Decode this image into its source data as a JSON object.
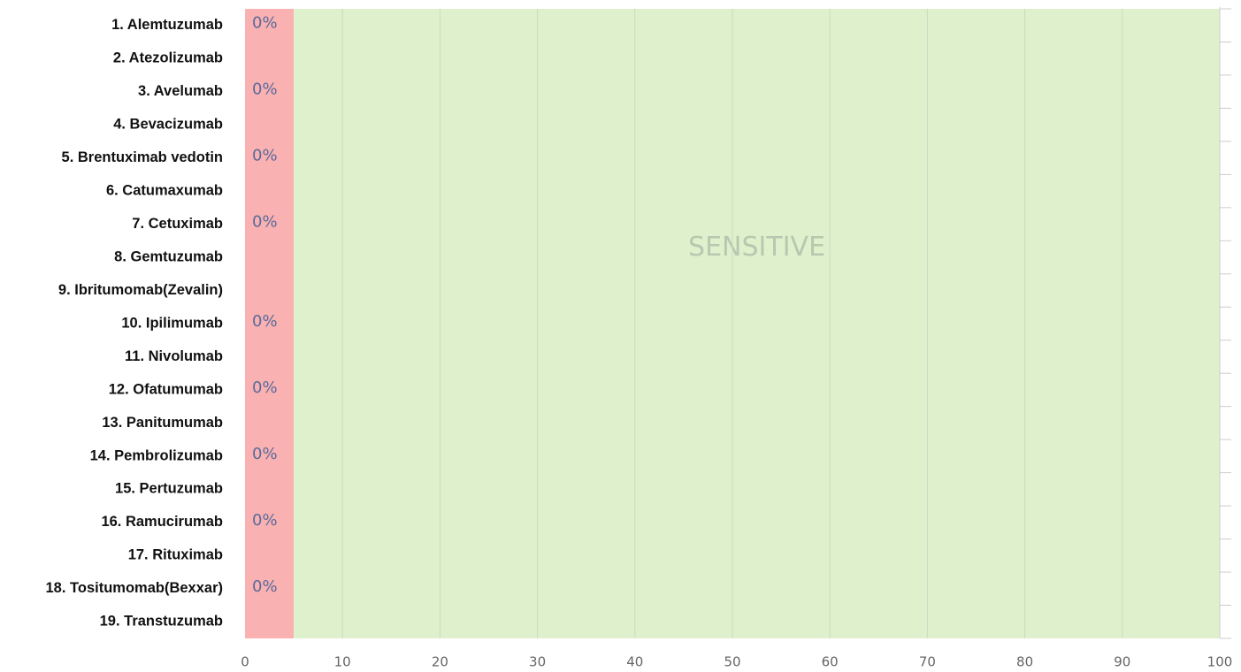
{
  "chart_data": {
    "type": "bar",
    "orientation": "horizontal",
    "categories": [
      "1. Alemtuzumab",
      "2. Atezolizumab",
      "3. Avelumab",
      "4. Bevacizumab",
      "5. Brentuximab vedotin",
      "6. Catumaxumab",
      "7. Cetuximab",
      "8. Gemtuzumab",
      "9. Ibritumomab(Zevalin)",
      "10. Ipilimumab",
      "11. Nivolumab",
      "12. Ofatumumab",
      "13. Panitumumab",
      "14. Pembrolizumab",
      "15. Pertuzumab",
      "16. Ramucirumab",
      "17. Rituximab",
      "18. Tositumomab(Bexxar)",
      "19. Transtuzumab"
    ],
    "values": [
      0,
      0,
      0,
      0,
      0,
      0,
      0,
      0,
      0,
      0,
      0,
      0,
      0,
      0,
      0,
      0,
      0,
      0,
      0
    ],
    "value_labels": [
      "0%",
      null,
      "0%",
      null,
      "0%",
      null,
      "0%",
      null,
      null,
      "0%",
      null,
      "0%",
      null,
      "0%",
      null,
      "0%",
      null,
      "0%",
      null
    ],
    "color": "#e05050",
    "bands": [
      {
        "from": 0,
        "to": 5,
        "color": "#f9b1b1"
      },
      {
        "from": 5,
        "to": 100,
        "color": "#dff0cc",
        "label": "SENSITIVE"
      }
    ],
    "xlim": [
      0,
      100
    ],
    "xticks": [
      0,
      10,
      20,
      30,
      40,
      50,
      60,
      70,
      80,
      90,
      100
    ],
    "grid": true
  }
}
